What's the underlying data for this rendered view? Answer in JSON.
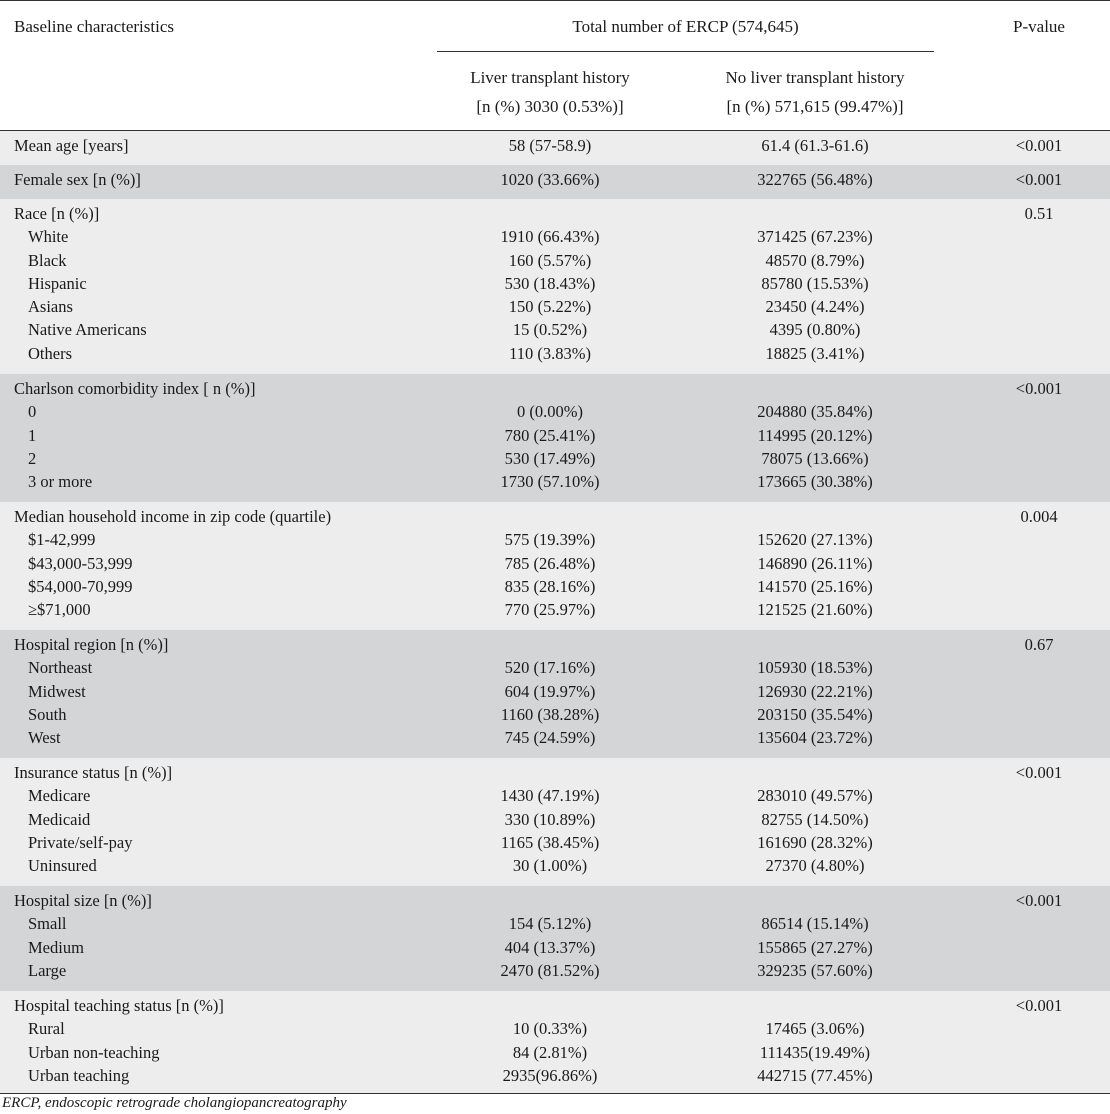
{
  "header": {
    "col_characteristics": "Baseline characteristics",
    "col_total": "Total number of ERCP (574,645)",
    "col_pvalue": "P-value",
    "col_lt_line1": "Liver transplant history",
    "col_lt_line2": "[n (%) 3030 (0.53%)]",
    "col_nolt_line1": "No liver transplant history",
    "col_nolt_line2": "[n (%) 571,615 (99.47%)]"
  },
  "groups": [
    {
      "shade": "light",
      "rows": [
        {
          "label": "Mean age [years]",
          "lt": "58 (57-58.9)",
          "nolt": "61.4 (61.3-61.6)",
          "p": "<0.001"
        }
      ]
    },
    {
      "shade": "dark",
      "rows": [
        {
          "label": "Female sex [n (%)]",
          "lt": "1020 (33.66%)",
          "nolt": "322765 (56.48%)",
          "p": "<0.001"
        }
      ]
    },
    {
      "shade": "light",
      "rows": [
        {
          "label": "Race [n (%)]",
          "lt": "",
          "nolt": "",
          "p": "0.51"
        },
        {
          "label": "White",
          "sub": true,
          "lt": "1910 (66.43%)",
          "nolt": "371425 (67.23%)",
          "p": ""
        },
        {
          "label": "Black",
          "sub": true,
          "lt": "160 (5.57%)",
          "nolt": "48570 (8.79%)",
          "p": ""
        },
        {
          "label": "Hispanic",
          "sub": true,
          "lt": "530 (18.43%)",
          "nolt": "85780 (15.53%)",
          "p": ""
        },
        {
          "label": "Asians",
          "sub": true,
          "lt": "150 (5.22%)",
          "nolt": "23450 (4.24%)",
          "p": ""
        },
        {
          "label": "Native Americans",
          "sub": true,
          "lt": "15 (0.52%)",
          "nolt": "4395 (0.80%)",
          "p": ""
        },
        {
          "label": "Others",
          "sub": true,
          "lt": "110 (3.83%)",
          "nolt": "18825 (3.41%)",
          "p": ""
        }
      ]
    },
    {
      "shade": "dark",
      "rows": [
        {
          "label": "Charlson comorbidity index [ n (%)]",
          "lt": "",
          "nolt": "",
          "p": "<0.001"
        },
        {
          "label": "0",
          "sub": true,
          "lt": "0 (0.00%)",
          "nolt": "204880 (35.84%)",
          "p": ""
        },
        {
          "label": "1",
          "sub": true,
          "lt": "780 (25.41%)",
          "nolt": "114995 (20.12%)",
          "p": ""
        },
        {
          "label": "2",
          "sub": true,
          "lt": "530 (17.49%)",
          "nolt": "78075 (13.66%)",
          "p": ""
        },
        {
          "label": "3 or more",
          "sub": true,
          "lt": "1730 (57.10%)",
          "nolt": "173665 (30.38%)",
          "p": ""
        }
      ]
    },
    {
      "shade": "light",
      "rows": [
        {
          "label": "Median household income in zip code (quartile)",
          "lt": "",
          "nolt": "",
          "p": "0.004"
        },
        {
          "label": "$1-42,999",
          "sub": true,
          "lt": "575 (19.39%)",
          "nolt": "152620 (27.13%)",
          "p": ""
        },
        {
          "label": "$43,000-53,999",
          "sub": true,
          "lt": "785 (26.48%)",
          "nolt": "146890 (26.11%)",
          "p": ""
        },
        {
          "label": "$54,000-70,999",
          "sub": true,
          "lt": "835 (28.16%)",
          "nolt": "141570 (25.16%)",
          "p": ""
        },
        {
          "label": "≥$71,000",
          "sub": true,
          "lt": "770 (25.97%)",
          "nolt": "121525 (21.60%)",
          "p": ""
        }
      ]
    },
    {
      "shade": "dark",
      "rows": [
        {
          "label": "Hospital region [n (%)]",
          "lt": "",
          "nolt": "",
          "p": "0.67"
        },
        {
          "label": "Northeast",
          "sub": true,
          "lt": "520 (17.16%)",
          "nolt": "105930 (18.53%)",
          "p": ""
        },
        {
          "label": "Midwest",
          "sub": true,
          "lt": "604 (19.97%)",
          "nolt": "126930 (22.21%)",
          "p": ""
        },
        {
          "label": "South",
          "sub": true,
          "lt": "1160 (38.28%)",
          "nolt": "203150 (35.54%)",
          "p": ""
        },
        {
          "label": "West",
          "sub": true,
          "lt": "745 (24.59%)",
          "nolt": "135604 (23.72%)",
          "p": ""
        }
      ]
    },
    {
      "shade": "light",
      "rows": [
        {
          "label": "Insurance status [n (%)]",
          "lt": "",
          "nolt": "",
          "p": "<0.001"
        },
        {
          "label": "Medicare",
          "sub": true,
          "lt": "1430 (47.19%)",
          "nolt": "283010 (49.57%)",
          "p": ""
        },
        {
          "label": "Medicaid",
          "sub": true,
          "lt": "330 (10.89%)",
          "nolt": "82755 (14.50%)",
          "p": ""
        },
        {
          "label": "Private/self-pay",
          "sub": true,
          "lt": "1165 (38.45%)",
          "nolt": "161690 (28.32%)",
          "p": ""
        },
        {
          "label": "Uninsured",
          "sub": true,
          "lt": "30 (1.00%)",
          "nolt": "27370 (4.80%)",
          "p": ""
        }
      ]
    },
    {
      "shade": "dark",
      "rows": [
        {
          "label": "Hospital size [n (%)]",
          "lt": "",
          "nolt": "",
          "p": "<0.001"
        },
        {
          "label": "Small",
          "sub": true,
          "lt": "154 (5.12%)",
          "nolt": "86514 (15.14%)",
          "p": ""
        },
        {
          "label": "Medium",
          "sub": true,
          "lt": "404 (13.37%)",
          "nolt": "155865 (27.27%)",
          "p": ""
        },
        {
          "label": "Large",
          "sub": true,
          "lt": "2470 (81.52%)",
          "nolt": "329235 (57.60%)",
          "p": ""
        }
      ]
    },
    {
      "shade": "light",
      "rows": [
        {
          "label": "Hospital teaching status [n (%)]",
          "lt": "",
          "nolt": "",
          "p": "<0.001"
        },
        {
          "label": "Rural",
          "sub": true,
          "lt": "10 (0.33%)",
          "nolt": "17465 (3.06%)",
          "p": ""
        },
        {
          "label": "Urban non-teaching",
          "sub": true,
          "lt": "84 (2.81%)",
          "nolt": "111435(19.49%)",
          "p": ""
        },
        {
          "label": "Urban teaching",
          "sub": true,
          "lt": "2935(96.86%)",
          "nolt": "442715 (77.45%)",
          "p": ""
        }
      ]
    }
  ],
  "footnote": "ERCP, endoscopic retrograde cholangiopancreatography"
}
